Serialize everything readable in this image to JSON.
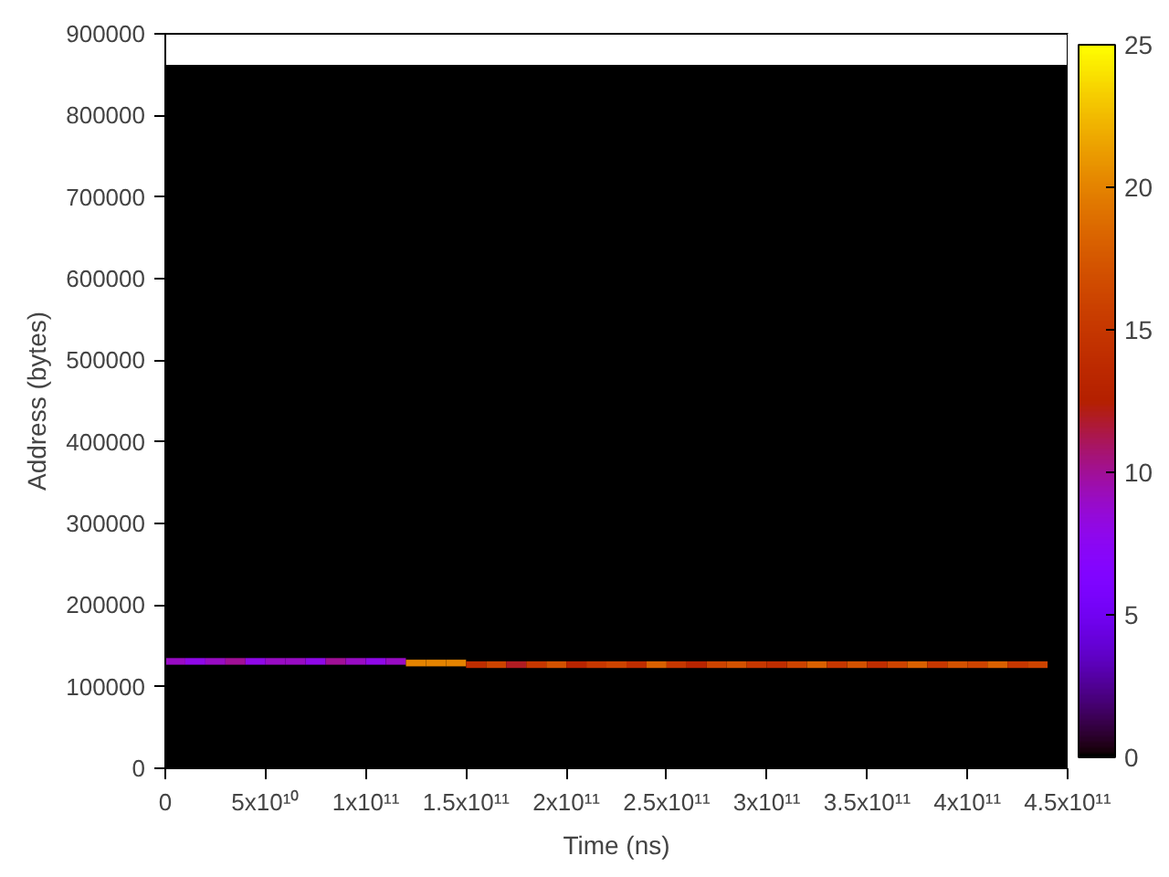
{
  "chart_data": {
    "type": "scatter",
    "marker": "square",
    "xlabel": "Time (ns)",
    "ylabel": "Address (bytes)",
    "x": [
      5000000000.0,
      15000000000.0,
      25000000000.0,
      35000000000.0,
      45000000000.0,
      55000000000.0,
      65000000000.0,
      75000000000.0,
      85000000000.0,
      95000000000.0,
      105000000000.0,
      115000000000.0,
      125000000000.0,
      135000000000.0,
      145000000000.0,
      155000000000.0,
      165000000000.0,
      175000000000.0,
      185000000000.0,
      195000000000.0,
      205000000000.0,
      215000000000.0,
      225000000000.0,
      235000000000.0,
      245000000000.0,
      255000000000.0,
      265000000000.0,
      275000000000.0,
      285000000000.0,
      295000000000.0,
      305000000000.0,
      315000000000.0,
      325000000000.0,
      335000000000.0,
      345000000000.0,
      355000000000.0,
      365000000000.0,
      375000000000.0,
      385000000000.0,
      395000000000.0,
      405000000000.0,
      415000000000.0,
      425000000000.0,
      435000000000.0
    ],
    "values": [
      131000,
      131000,
      131000,
      131000,
      131000,
      131000,
      131000,
      131000,
      131000,
      131000,
      131000,
      131000,
      129000,
      129000,
      129000,
      127000,
      127000,
      127000,
      127000,
      127000,
      127000,
      127000,
      127000,
      127000,
      127000,
      127000,
      127000,
      127000,
      127000,
      127000,
      127000,
      127000,
      127000,
      127000,
      127000,
      127000,
      127000,
      127000,
      127000,
      127000,
      127000,
      127000,
      127000,
      127000
    ],
    "cvalues": [
      9,
      8,
      9,
      10,
      8,
      9,
      9,
      8,
      10,
      9,
      8,
      9,
      20,
      20,
      20,
      14,
      16,
      12,
      15,
      17,
      13,
      15,
      16,
      14,
      18,
      15,
      13,
      16,
      17,
      15,
      14,
      16,
      18,
      15,
      17,
      14,
      16,
      18,
      15,
      17,
      16,
      18,
      15,
      16
    ],
    "bands": [
      {
        "axis": "y",
        "from": 0,
        "to": 862000,
        "color": "#000000"
      }
    ],
    "xlim": [
      0,
      450000000000
    ],
    "ylim": [
      0,
      900000
    ],
    "xticks": [
      0,
      {
        "value": 50000000000,
        "label": "5x10¹⁰"
      },
      {
        "value": 100000000000,
        "label": "1x10¹¹"
      },
      {
        "value": 150000000000,
        "label": "1.5x10¹¹"
      },
      {
        "value": 200000000000,
        "label": "2x10¹¹"
      },
      {
        "value": 250000000000,
        "label": "2.5x10¹¹"
      },
      {
        "value": 300000000000,
        "label": "3x10¹¹"
      },
      {
        "value": 350000000000,
        "label": "3.5x10¹¹"
      },
      {
        "value": 400000000000,
        "label": "4x10¹¹"
      },
      {
        "value": 450000000000,
        "label": "4.5x10¹¹"
      }
    ],
    "yticks": [
      0,
      100000,
      200000,
      300000,
      400000,
      500000,
      600000,
      700000,
      800000,
      900000
    ],
    "clim": [
      0,
      25
    ],
    "cticks": [
      0,
      5,
      10,
      15,
      20,
      25
    ],
    "grid": false
  }
}
